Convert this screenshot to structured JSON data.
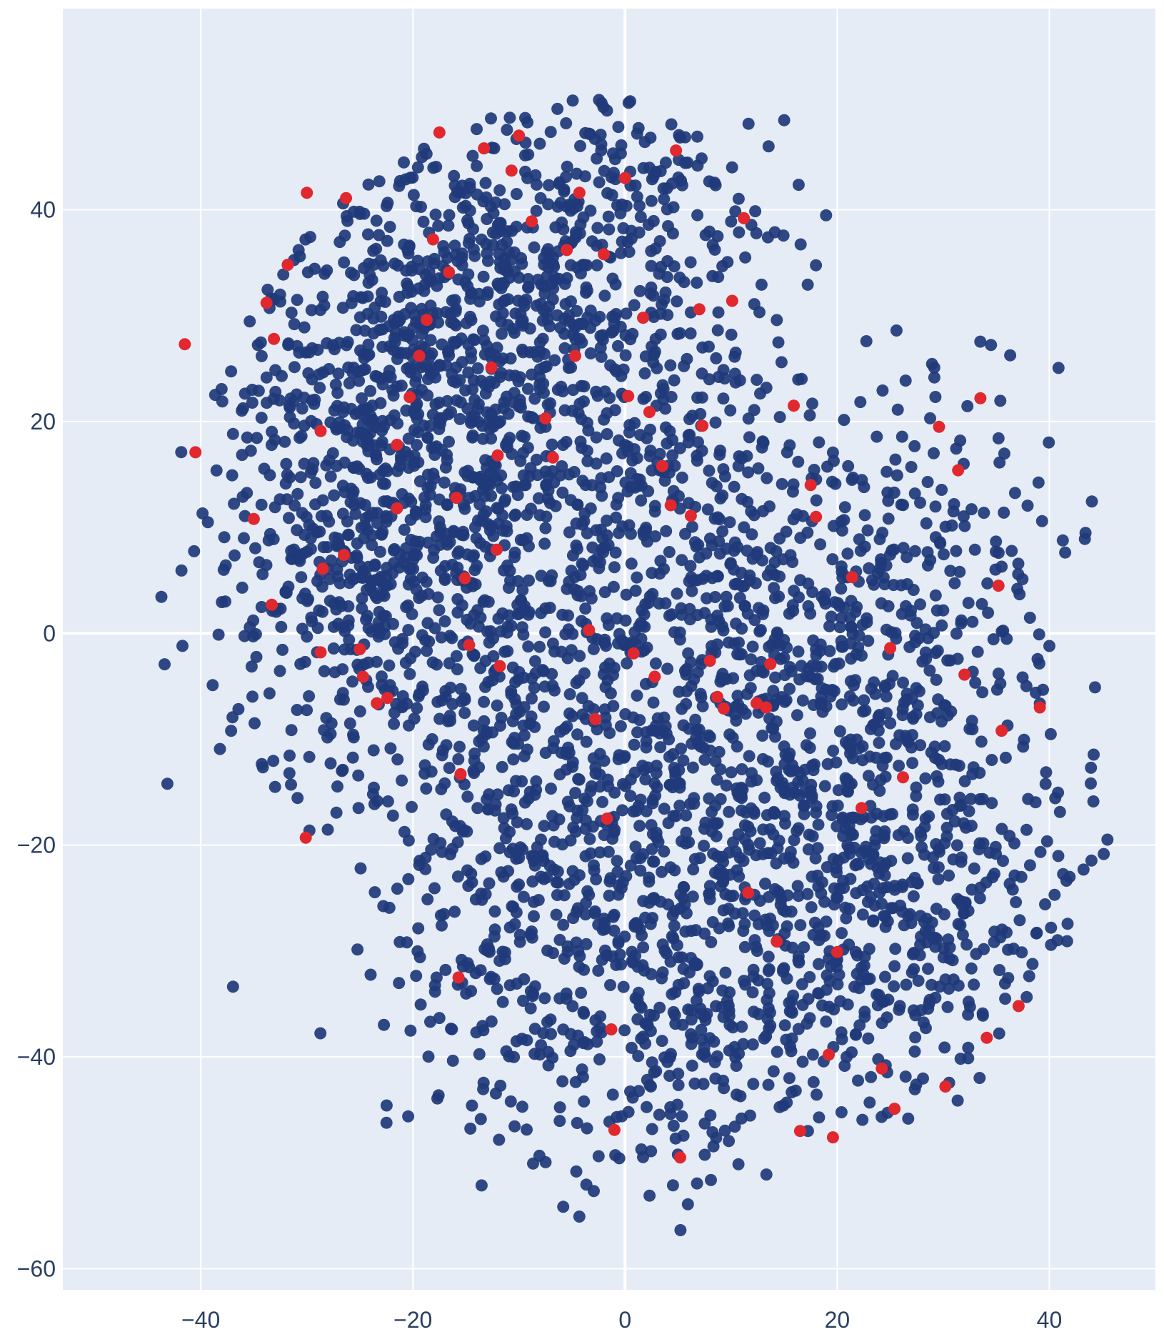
{
  "chart_data": {
    "type": "scatter",
    "title": "",
    "xlabel": "",
    "ylabel": "",
    "xlim": [
      -53,
      50
    ],
    "ylim": [
      -62,
      59
    ],
    "x_ticks": [
      -40,
      -20,
      0,
      20,
      40
    ],
    "y_ticks": [
      -60,
      -40,
      -20,
      0,
      20,
      40
    ],
    "x_tick_labels": [
      "−40",
      "−20",
      "0",
      "20",
      "40"
    ],
    "y_tick_labels": [
      "−60",
      "−40",
      "−20",
      "0",
      "20",
      "40"
    ],
    "grid": true,
    "legend": "none",
    "colors": {
      "plot_background": "#e5ecf6",
      "grid": "#ffffff",
      "majority_points": "#1f3a7a",
      "highlighted_points": "#e0282e"
    },
    "series": [
      {
        "color": "#e0282e",
        "values": [
          [
            -41.5,
            27.3
          ],
          [
            -40.5,
            17.1
          ],
          [
            -35.0,
            10.8
          ],
          [
            -33.3,
            2.7
          ],
          [
            -33.8,
            31.2
          ],
          [
            -33.1,
            27.8
          ],
          [
            -31.8,
            34.8
          ],
          [
            -30.0,
            41.6
          ],
          [
            -26.3,
            41.1
          ],
          [
            -28.7,
            19.1
          ],
          [
            -28.5,
            6.1
          ],
          [
            -28.7,
            -1.8
          ],
          [
            -30.1,
            -19.3
          ],
          [
            -26.5,
            7.4
          ],
          [
            -25.0,
            -1.5
          ],
          [
            -24.7,
            -4.1
          ],
          [
            -23.4,
            -6.6
          ],
          [
            -22.4,
            -6.1
          ],
          [
            -21.5,
            11.8
          ],
          [
            -21.5,
            17.8
          ],
          [
            -20.3,
            22.3
          ],
          [
            -19.4,
            26.2
          ],
          [
            -18.7,
            29.6
          ],
          [
            -18.1,
            37.2
          ],
          [
            -17.5,
            47.3
          ],
          [
            -16.6,
            34.1
          ],
          [
            -15.9,
            12.8
          ],
          [
            -15.1,
            5.2
          ],
          [
            -14.7,
            -1.1
          ],
          [
            -15.5,
            -13.3
          ],
          [
            -15.7,
            -32.5
          ],
          [
            -13.3,
            45.8
          ],
          [
            -12.6,
            25.1
          ],
          [
            -12.0,
            16.8
          ],
          [
            -12.1,
            7.9
          ],
          [
            -11.8,
            -3.1
          ],
          [
            -10.7,
            43.7
          ],
          [
            -10.0,
            47.0
          ],
          [
            -8.8,
            38.9
          ],
          [
            -7.5,
            20.3
          ],
          [
            -6.8,
            16.6
          ],
          [
            -5.5,
            36.2
          ],
          [
            -4.7,
            26.2
          ],
          [
            -4.3,
            41.6
          ],
          [
            -3.4,
            0.3
          ],
          [
            -2.8,
            -8.1
          ],
          [
            -2.0,
            35.8
          ],
          [
            -1.7,
            -17.5
          ],
          [
            -1.3,
            -37.4
          ],
          [
            -1.0,
            -46.9
          ],
          [
            0.0,
            43.0
          ],
          [
            0.3,
            22.4
          ],
          [
            0.8,
            -1.9
          ],
          [
            1.7,
            29.8
          ],
          [
            2.3,
            20.9
          ],
          [
            2.8,
            -4.1
          ],
          [
            3.5,
            15.8
          ],
          [
            4.3,
            12.1
          ],
          [
            4.8,
            45.6
          ],
          [
            5.2,
            -49.5
          ],
          [
            6.2,
            11.1
          ],
          [
            7.0,
            30.6
          ],
          [
            7.3,
            19.6
          ],
          [
            8.0,
            -2.6
          ],
          [
            8.7,
            -6.0
          ],
          [
            9.3,
            -7.1
          ],
          [
            10.1,
            31.4
          ],
          [
            11.2,
            39.2
          ],
          [
            11.6,
            -24.5
          ],
          [
            12.4,
            -6.6
          ],
          [
            13.3,
            -7.0
          ],
          [
            13.7,
            -2.9
          ],
          [
            14.3,
            -29.1
          ],
          [
            15.9,
            21.5
          ],
          [
            16.5,
            -47.0
          ],
          [
            17.5,
            14.0
          ],
          [
            18.0,
            11.0
          ],
          [
            19.2,
            -39.8
          ],
          [
            19.6,
            -47.6
          ],
          [
            20.0,
            -30.1
          ],
          [
            21.4,
            5.3
          ],
          [
            22.3,
            -16.5
          ],
          [
            24.2,
            -41.1
          ],
          [
            25.0,
            -1.4
          ],
          [
            25.4,
            -44.9
          ],
          [
            26.2,
            -13.6
          ],
          [
            29.6,
            19.5
          ],
          [
            30.2,
            -42.8
          ],
          [
            31.4,
            15.4
          ],
          [
            32.0,
            -3.9
          ],
          [
            33.5,
            22.2
          ],
          [
            34.1,
            -38.2
          ],
          [
            35.2,
            4.5
          ],
          [
            35.5,
            -9.2
          ],
          [
            37.1,
            -35.2
          ],
          [
            39.1,
            -7.0
          ]
        ]
      }
    ]
  }
}
